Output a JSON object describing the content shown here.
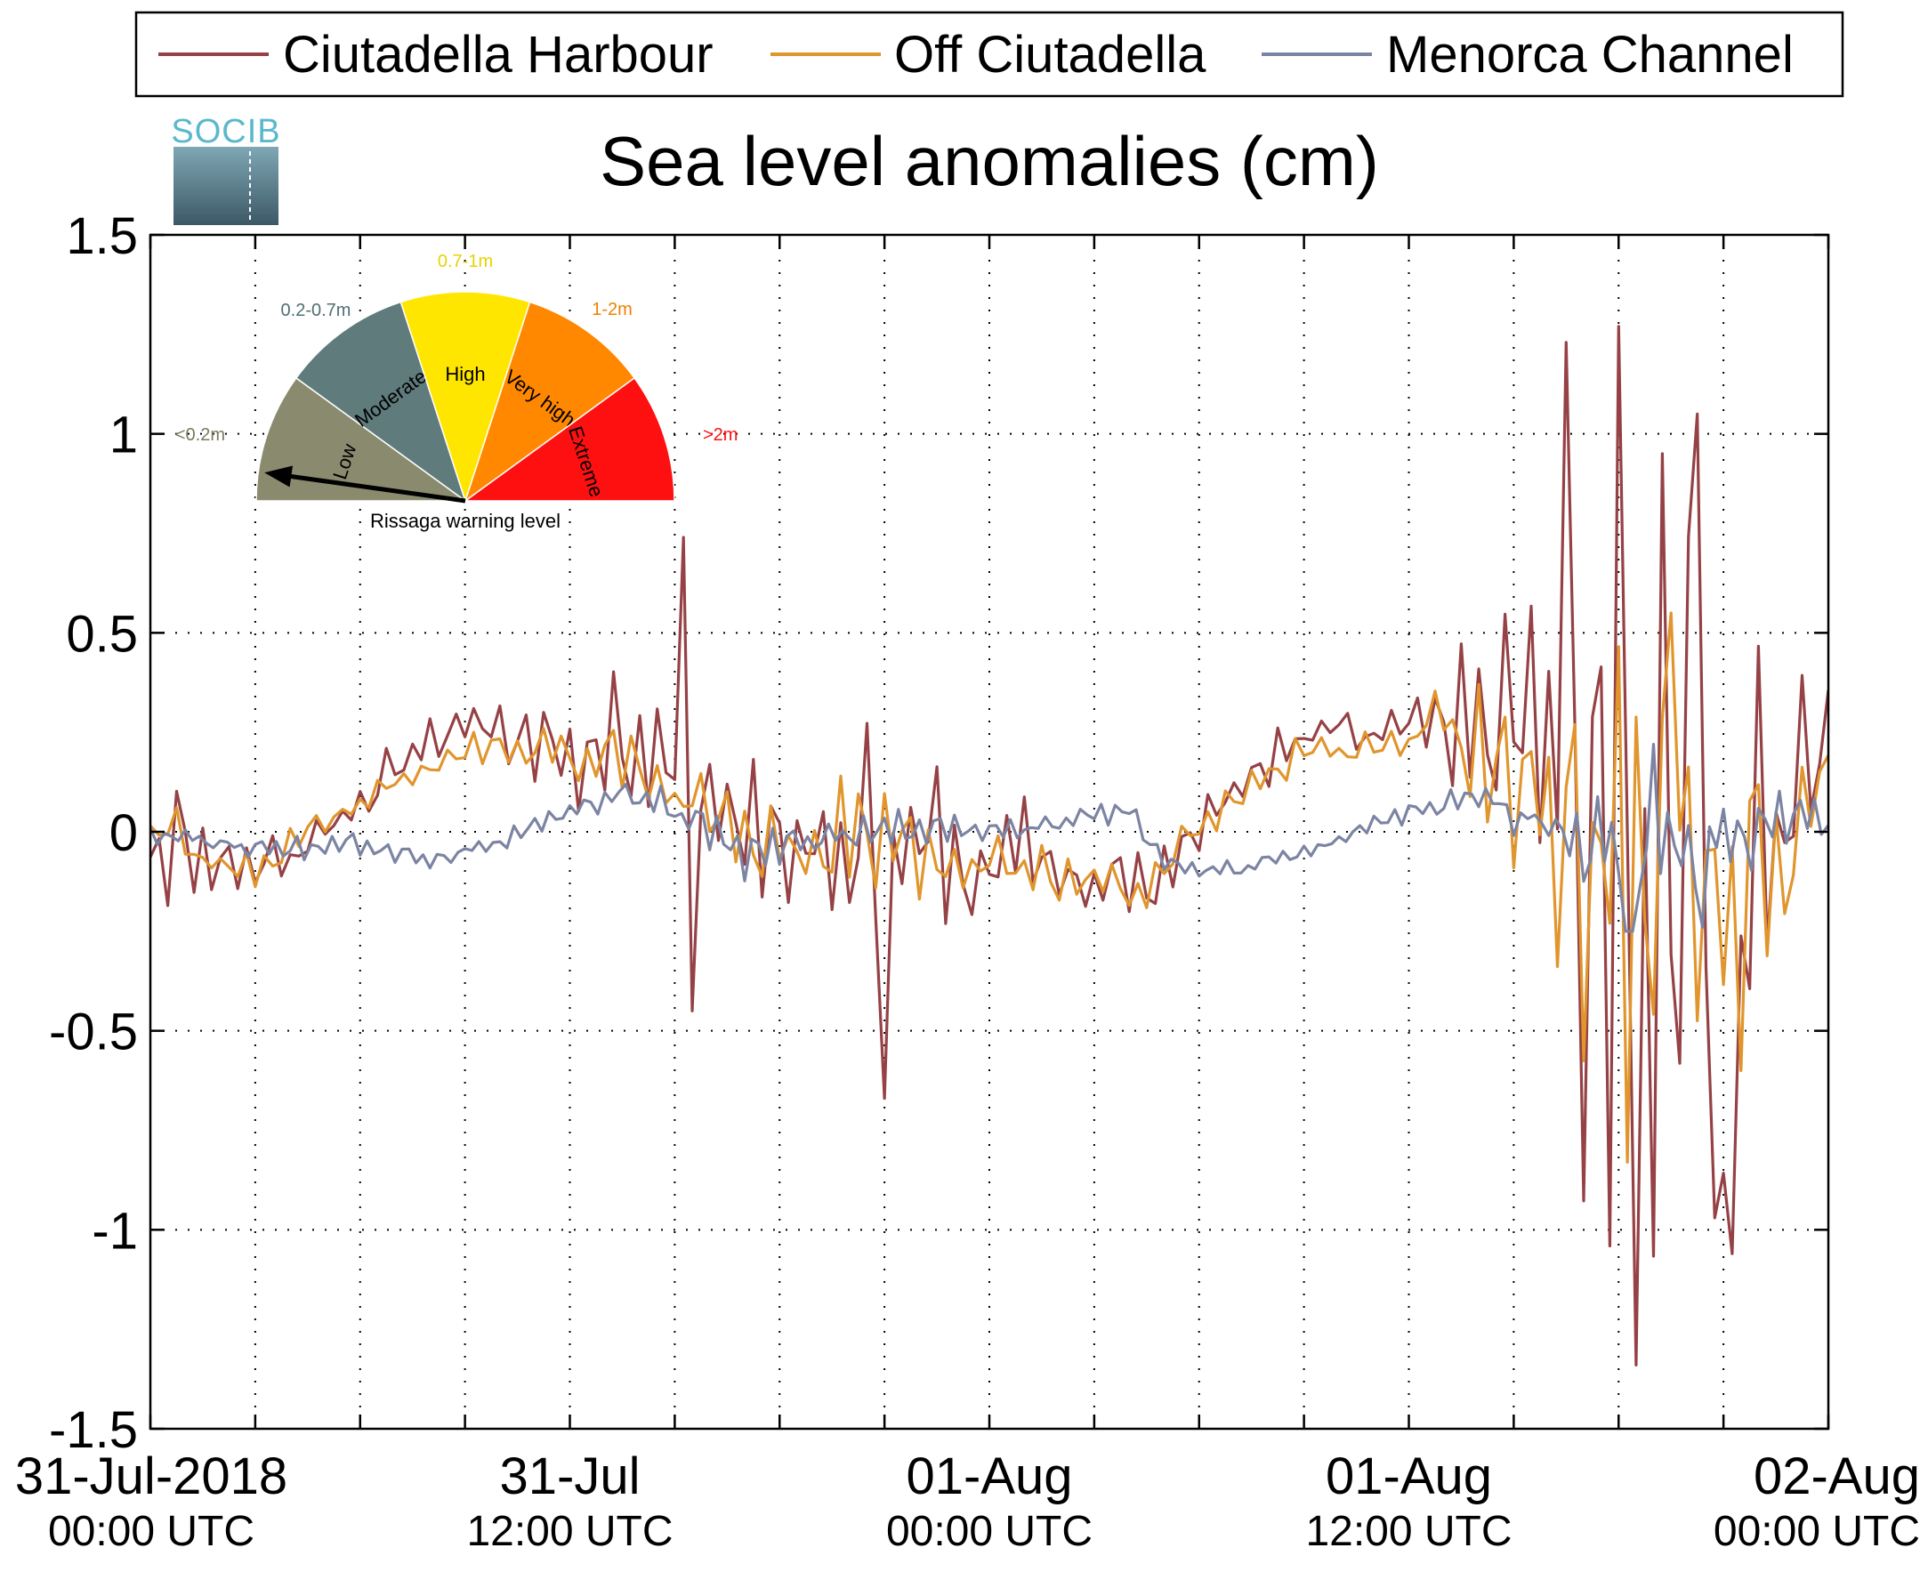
{
  "chart_data": {
    "type": "line",
    "title": "Sea level anomalies (cm)",
    "logo_text": "SOCIB",
    "ylim": [
      -1.5,
      1.5
    ],
    "yticks": [
      -1.5,
      -1,
      -0.5,
      0,
      0.5,
      1,
      1.5
    ],
    "ytick_labels": [
      "-1.5",
      "-1",
      "-0.5",
      "0",
      "0.5",
      "1",
      "1.5"
    ],
    "x_unit": "hours since 31-Jul-2018 00:00 UTC",
    "xlim": [
      0,
      48
    ],
    "xgrid": [
      0,
      3,
      6,
      9,
      12,
      15,
      18,
      21,
      24,
      27,
      30,
      33,
      36,
      39,
      42,
      45,
      48
    ],
    "xtick_labels": [
      {
        "t": 0,
        "line1": "31-Jul-2018",
        "line2": "00:00 UTC"
      },
      {
        "t": 12,
        "line1": "31-Jul",
        "line2": "12:00 UTC"
      },
      {
        "t": 24,
        "line1": "01-Aug",
        "line2": "00:00 UTC"
      },
      {
        "t": 36,
        "line1": "01-Aug",
        "line2": "12:00 UTC"
      },
      {
        "t": 48,
        "line1": "02-Aug",
        "line2": "00:00 UTC"
      }
    ],
    "grid": true,
    "legend_position": "top",
    "series": [
      {
        "name": "Ciutadella Harbour",
        "color": "#954145",
        "sampling_hours": 0.25,
        "trend": [
          [
            0,
            0
          ],
          [
            2,
            -0.1
          ],
          [
            4,
            -0.05
          ],
          [
            5.5,
            0.05
          ],
          [
            7,
            0.15
          ],
          [
            9,
            0.25
          ],
          [
            11,
            0.25
          ],
          [
            13,
            0.2
          ],
          [
            16,
            0.05
          ],
          [
            18,
            -0.05
          ],
          [
            20,
            0
          ],
          [
            22,
            -0.05
          ],
          [
            26,
            -0.1
          ],
          [
            28.5,
            -0.15
          ],
          [
            29.5,
            -0.02
          ],
          [
            31,
            0.1
          ],
          [
            33,
            0.25
          ],
          [
            36,
            0.25
          ],
          [
            37,
            0.3
          ],
          [
            39,
            0.15
          ],
          [
            41,
            -0.1
          ],
          [
            43,
            -0.2
          ],
          [
            46,
            -0.05
          ],
          [
            48,
            0.1
          ]
        ],
        "amplitude": [
          [
            0,
            0.18
          ],
          [
            3,
            0.1
          ],
          [
            6,
            0.08
          ],
          [
            10,
            0.1
          ],
          [
            14,
            0.25
          ],
          [
            16,
            0.2
          ],
          [
            21,
            0.35
          ],
          [
            23,
            0.25
          ],
          [
            26,
            0.15
          ],
          [
            29,
            0.1
          ],
          [
            34,
            0.08
          ],
          [
            36,
            0.08
          ],
          [
            38,
            0.35
          ],
          [
            39.5,
            0.6
          ],
          [
            41.5,
            1.1
          ],
          [
            43.5,
            1.0
          ],
          [
            45.5,
            0.8
          ],
          [
            47,
            0.4
          ],
          [
            48,
            0.3
          ]
        ],
        "spikes": [
          [
            15.35,
            0.74
          ],
          [
            15.55,
            -0.45
          ],
          [
            21.1,
            -0.67
          ],
          [
            42.1,
            1.27
          ],
          [
            42.5,
            -1.34
          ],
          [
            44.3,
            1.05
          ],
          [
            45.3,
            -1.06
          ],
          [
            40.5,
            1.23
          ],
          [
            43.2,
            0.95
          ],
          [
            44.8,
            -0.97
          ]
        ]
      },
      {
        "name": "Off Ciutadella",
        "color": "#e0952d",
        "sampling_hours": 0.25,
        "trend": [
          [
            0,
            0
          ],
          [
            2,
            -0.08
          ],
          [
            4,
            -0.05
          ],
          [
            5.5,
            0.05
          ],
          [
            7,
            0.12
          ],
          [
            9,
            0.2
          ],
          [
            11,
            0.22
          ],
          [
            13,
            0.18
          ],
          [
            16,
            0.05
          ],
          [
            18,
            -0.05
          ],
          [
            20,
            0
          ],
          [
            22,
            -0.05
          ],
          [
            26,
            -0.1
          ],
          [
            28.5,
            -0.15
          ],
          [
            29.5,
            -0.02
          ],
          [
            31,
            0.08
          ],
          [
            33,
            0.2
          ],
          [
            36,
            0.22
          ],
          [
            37,
            0.3
          ],
          [
            39,
            0.12
          ],
          [
            41,
            -0.08
          ],
          [
            43,
            -0.15
          ],
          [
            46,
            -0.05
          ],
          [
            48,
            0.1
          ]
        ],
        "amplitude": [
          [
            0,
            0.1
          ],
          [
            6,
            0.05
          ],
          [
            10,
            0.06
          ],
          [
            14,
            0.15
          ],
          [
            16,
            0.12
          ],
          [
            21,
            0.18
          ],
          [
            24,
            0.12
          ],
          [
            29,
            0.06
          ],
          [
            36,
            0.05
          ],
          [
            38,
            0.2
          ],
          [
            40,
            0.45
          ],
          [
            42,
            0.7
          ],
          [
            44,
            0.55
          ],
          [
            46,
            0.4
          ],
          [
            48,
            0.25
          ]
        ],
        "spikes": [
          [
            42.3,
            -0.83
          ],
          [
            43.6,
            0.55
          ],
          [
            45.4,
            -0.6
          ]
        ]
      },
      {
        "name": "Menorca Channel",
        "color": "#7c84a3",
        "sampling_hours": 0.2,
        "trend": [
          [
            0,
            0
          ],
          [
            3,
            -0.05
          ],
          [
            6,
            -0.03
          ],
          [
            8,
            -0.07
          ],
          [
            10,
            -0.02
          ],
          [
            12,
            0.05
          ],
          [
            13.5,
            0.1
          ],
          [
            15,
            0.05
          ],
          [
            17,
            -0.05
          ],
          [
            20,
            0
          ],
          [
            22,
            0.02
          ],
          [
            25,
            0.01
          ],
          [
            28,
            0.05
          ],
          [
            29,
            -0.08
          ],
          [
            31,
            -0.1
          ],
          [
            33,
            -0.05
          ],
          [
            35,
            0.02
          ],
          [
            36,
            0.05
          ],
          [
            38,
            0.1
          ],
          [
            40,
            0
          ],
          [
            42,
            -0.05
          ],
          [
            44,
            -0.05
          ],
          [
            46,
            0
          ],
          [
            48,
            0.05
          ]
        ],
        "amplitude": [
          [
            0,
            0.04
          ],
          [
            10,
            0.03
          ],
          [
            14,
            0.05
          ],
          [
            16,
            0.08
          ],
          [
            22,
            0.05
          ],
          [
            28,
            0.04
          ],
          [
            34,
            0.02
          ],
          [
            36,
            0.03
          ],
          [
            38,
            0.05
          ],
          [
            40,
            0.1
          ],
          [
            42,
            0.18
          ],
          [
            44,
            0.12
          ],
          [
            48,
            0.08
          ]
        ],
        "spikes": [
          [
            42.3,
            -0.25
          ],
          [
            43,
            0.22
          ],
          [
            44.4,
            -0.24
          ]
        ]
      }
    ],
    "gauge": {
      "caption": "Rissaga warning level",
      "needle_value": "Low",
      "segments": [
        {
          "label": "Low",
          "range": "<0.2m",
          "color": "#8a8b6e",
          "range_color": "#7a7a5c"
        },
        {
          "label": "Moderate",
          "range": "0.2-0.7m",
          "color": "#607b7c",
          "range_color": "#4f6f72"
        },
        {
          "label": "High",
          "range": "0.7-1m",
          "color": "#ffe600",
          "range_color": "#e8d300"
        },
        {
          "label": "Very high",
          "range": "1-2m",
          "color": "#ff8800",
          "range_color": "#f08000"
        },
        {
          "label": "Extreme",
          "range": ">2m",
          "color": "#ff1010",
          "range_color": "#ff1010"
        }
      ]
    }
  }
}
